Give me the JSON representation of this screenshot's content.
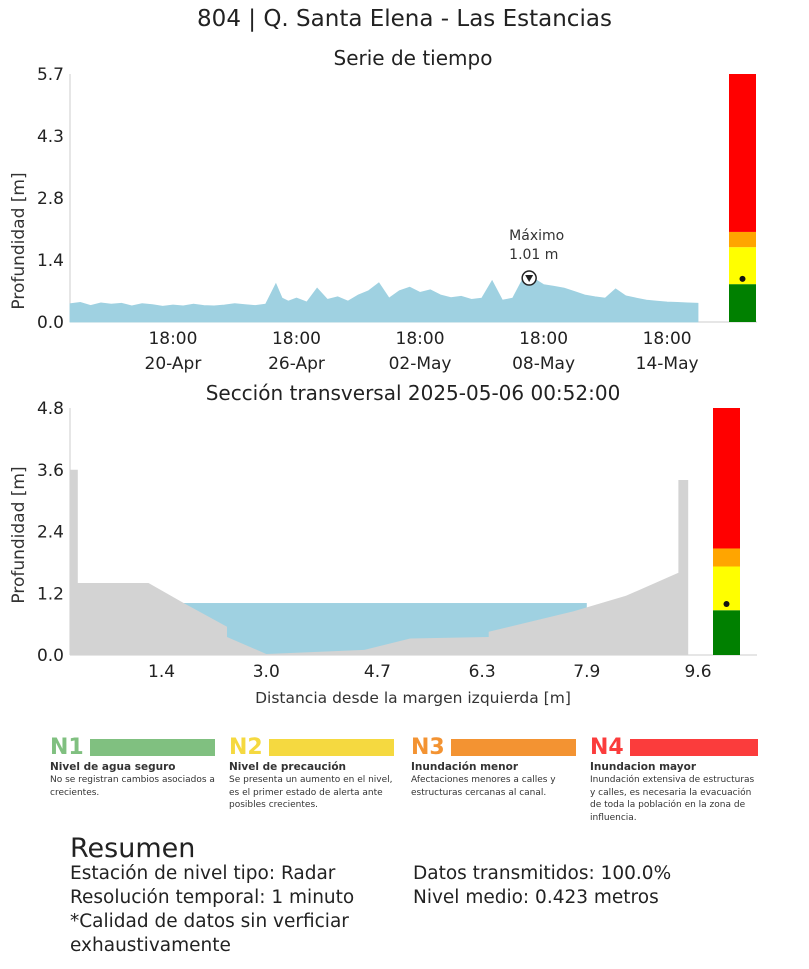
{
  "header": {
    "title": "804 | Q. Santa Elena - Las Estancias"
  },
  "chart_data": [
    {
      "type": "area",
      "title": "Serie de tiempo",
      "xlabel": "",
      "ylabel": "Profundidad [m]",
      "ylim": [
        0,
        5.7
      ],
      "yticks": [
        "0.0",
        "1.4",
        "2.8",
        "4.3",
        "5.7"
      ],
      "x_tick_labels": [
        {
          "time": "18:00",
          "date": "20-Apr"
        },
        {
          "time": "18:00",
          "date": "26-Apr"
        },
        {
          "time": "18:00",
          "date": "02-May"
        },
        {
          "time": "18:00",
          "date": "08-May"
        },
        {
          "time": "18:00",
          "date": "14-May"
        }
      ],
      "x_range_days": [
        0,
        30.5
      ],
      "x_tick_days": [
        5.0,
        11.0,
        17.0,
        23.0,
        29.0
      ],
      "series": [
        {
          "color": "#9fd1e1",
          "x_days": [
            0,
            0.5,
            1,
            1.5,
            2,
            2.5,
            3,
            3.5,
            4,
            4.5,
            5,
            5.5,
            6,
            6.5,
            7,
            7.5,
            8,
            8.5,
            9,
            9.5,
            10,
            10.3,
            10.6,
            11,
            11.5,
            12,
            12.5,
            13,
            13.5,
            14,
            14.5,
            15,
            15.5,
            16,
            16.5,
            17,
            17.5,
            18,
            18.5,
            19,
            19.5,
            20,
            20.5,
            21,
            21.5,
            22,
            22.5,
            23,
            23.5,
            24,
            24.5,
            25,
            25.5,
            26,
            26.5,
            27,
            27.5,
            28,
            28.5,
            29,
            29.5,
            30,
            30.5
          ],
          "y": [
            0.42,
            0.45,
            0.38,
            0.44,
            0.41,
            0.43,
            0.37,
            0.42,
            0.4,
            0.36,
            0.39,
            0.37,
            0.41,
            0.38,
            0.37,
            0.39,
            0.42,
            0.4,
            0.38,
            0.41,
            0.88,
            0.55,
            0.48,
            0.55,
            0.46,
            0.78,
            0.52,
            0.58,
            0.48,
            0.62,
            0.72,
            0.9,
            0.55,
            0.72,
            0.8,
            0.68,
            0.74,
            0.62,
            0.56,
            0.59,
            0.52,
            0.55,
            0.95,
            0.5,
            0.55,
            1.0,
            1.01,
            0.86,
            0.82,
            0.78,
            0.7,
            0.62,
            0.58,
            0.55,
            0.76,
            0.6,
            0.55,
            0.5,
            0.48,
            0.46,
            0.45,
            0.44,
            0.43
          ]
        }
      ],
      "annotation": {
        "label": "Máximo",
        "value_text": "1.01 m",
        "x_day": 22.3,
        "y": 1.01
      },
      "alert_bar": {
        "levels": [
          {
            "from": 0,
            "to": 0.87,
            "color": "#008000"
          },
          {
            "from": 0.87,
            "to": 1.72,
            "color": "#ffff00"
          },
          {
            "from": 1.72,
            "to": 2.07,
            "color": "#ffa500"
          },
          {
            "from": 2.07,
            "to": 5.7,
            "color": "#ff0000"
          }
        ],
        "current": 0.99
      }
    },
    {
      "type": "area",
      "title": "Sección transversal 2025-05-06 00:52:00",
      "xlabel": "Distancia desde la margen izquierda [m]",
      "ylabel": "Profundidad [m]",
      "ylim": [
        0,
        4.8
      ],
      "xlim": [
        0,
        9.6
      ],
      "yticks": [
        "0.0",
        "1.2",
        "2.4",
        "3.6",
        "4.8"
      ],
      "xticks": [
        "1.4",
        "3.0",
        "4.7",
        "6.3",
        "7.9",
        "9.6"
      ],
      "xtick_values": [
        1.4,
        3.0,
        4.7,
        6.3,
        7.9,
        9.6
      ],
      "terrain": {
        "color": "#d3d3d3",
        "x": [
          0,
          0,
          0.12,
          0.12,
          0.12,
          1.2,
          1.75,
          2.4,
          2.4,
          3.0,
          3.6,
          4.5,
          5.2,
          6.4,
          6.4,
          7.7,
          8.5,
          9.3,
          9.3,
          9.45,
          9.45,
          9.6,
          9.6
        ],
        "y": [
          0,
          3.6,
          3.6,
          1.4,
          1.4,
          1.4,
          1.0,
          0.55,
          0.35,
          0.02,
          0.05,
          0.1,
          0.32,
          0.35,
          0.45,
          0.85,
          1.15,
          1.6,
          3.4,
          3.4,
          0,
          0,
          0
        ]
      },
      "water": {
        "color": "#9fd1e1",
        "level": 1.01,
        "x_from": 1.6,
        "x_to": 7.9
      },
      "alert_bar": {
        "levels": [
          {
            "from": 0,
            "to": 0.87,
            "color": "#008000"
          },
          {
            "from": 0.87,
            "to": 1.72,
            "color": "#ffff00"
          },
          {
            "from": 1.72,
            "to": 2.07,
            "color": "#ffa500"
          },
          {
            "from": 2.07,
            "to": 4.8,
            "color": "#ff0000"
          }
        ],
        "current": 0.99
      }
    }
  ],
  "legend": [
    {
      "code": "N1",
      "name": "Nivel de agua seguro",
      "desc": "No se registran cambios asociados a crecientes.",
      "color": "#80c080",
      "text_color": "#80c080"
    },
    {
      "code": "N2",
      "name": "Nivel de precaución",
      "desc": "Se presenta un aumento en el nivel, es el primer estado de alerta ante posibles crecientes.",
      "color": "#f5d940",
      "text_color": "#f5d940"
    },
    {
      "code": "N3",
      "name": "Inundación menor",
      "desc": "Afectaciones menores a calles y estructuras cercanas al canal.",
      "color": "#f39332",
      "text_color": "#f39332"
    },
    {
      "code": "N4",
      "name": "Inundacion mayor",
      "desc": "Inundación extensiva de estructuras y calles, es necesaria la evacuación de toda la población en la zona de influencia.",
      "color": "#fb3c3c",
      "text_color": "#fb3c3c"
    }
  ],
  "summary": {
    "title": "Resumen",
    "station_type": "Estación de nivel tipo: Radar",
    "resolution": "Resolución temporal: 1 minuto",
    "quality_1": "*Calidad de datos sin verficiar",
    "quality_2": "exhaustivamente",
    "transmitted": "Datos transmitidos: 100.0%",
    "mean_level": "Nivel medio: 0.423 metros"
  }
}
